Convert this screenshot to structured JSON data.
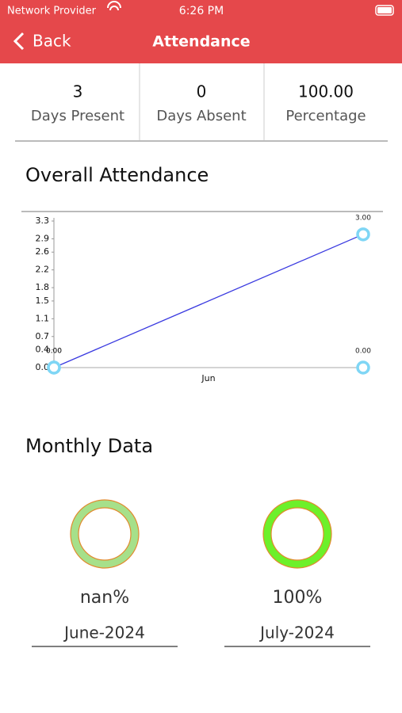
{
  "status_bar": {
    "carrier": "Network Provider",
    "time": "6:26 PM"
  },
  "nav": {
    "back": "Back",
    "title": "Attendance"
  },
  "stats": [
    {
      "value": "3",
      "label": "Days Present"
    },
    {
      "value": "0",
      "label": "Days Absent"
    },
    {
      "value": "100.00",
      "label": "Percentage"
    }
  ],
  "overall": {
    "heading": "Overall Attendance",
    "chart_data": {
      "type": "line",
      "xlabel": "Jun",
      "series": [
        {
          "color": "#3a3ae0",
          "values": [
            0,
            3
          ],
          "value_labels": [
            "0.00",
            "3.00"
          ]
        },
        {
          "color": "#bbbbbb",
          "values": [
            0,
            0
          ],
          "value_labels": [
            "0.00",
            "0.00"
          ]
        }
      ],
      "marker_color": "#7fd6f5",
      "ylim": [
        0,
        3.3
      ],
      "yticks": [
        {
          "value": 0,
          "label": "0.0"
        },
        0.4,
        0.7,
        1.1,
        1.5,
        1.8,
        2.2,
        2.6,
        2.9,
        3.3
      ]
    }
  },
  "monthly": {
    "heading": "Monthly Data",
    "items": [
      {
        "percent": "nan%",
        "month": "June-2024",
        "color": "#a6e08a"
      },
      {
        "percent": "100%",
        "month": "July-2024",
        "color": "#6df02a"
      }
    ]
  }
}
